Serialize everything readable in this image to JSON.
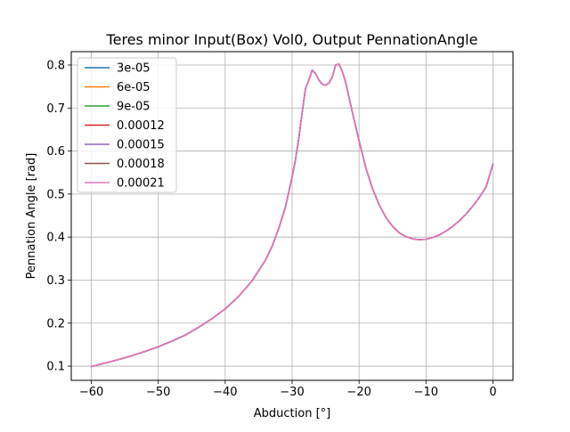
{
  "chart_data": {
    "type": "line",
    "title": "Teres minor Input(Box) Vol0, Output PennationAngle",
    "xlabel": "Abduction [°]",
    "ylabel": "Pennation Angle [rad]",
    "xlim": [
      -63,
      3
    ],
    "ylim": [
      0.067,
      0.831
    ],
    "xticks": [
      -60,
      -50,
      -40,
      -30,
      -20,
      -10,
      0
    ],
    "xtick_labels": [
      "−60",
      "−50",
      "−40",
      "−30",
      "−20",
      "−10",
      "0"
    ],
    "yticks": [
      0.1,
      0.2,
      0.3,
      0.4,
      0.5,
      0.6,
      0.7,
      0.8
    ],
    "ytick_labels": [
      "0.1",
      "0.2",
      "0.3",
      "0.4",
      "0.5",
      "0.6",
      "0.7",
      "0.8"
    ],
    "grid": true,
    "legend_position": "top-left",
    "x": [
      -60,
      -58,
      -56,
      -54,
      -52,
      -50,
      -48,
      -46,
      -44,
      -42,
      -40,
      -38,
      -36,
      -34,
      -33,
      -32,
      -31,
      -30,
      -29.5,
      -29,
      -28.5,
      -28,
      -27.5,
      -27,
      -26.5,
      -26,
      -25.5,
      -25,
      -24.5,
      -24,
      -23.5,
      -23,
      -22.5,
      -22,
      -21.5,
      -21,
      -20,
      -19,
      -18,
      -17,
      -16,
      -15,
      -14,
      -13,
      -12,
      -11,
      -10,
      -9,
      -8,
      -7,
      -6,
      -5,
      -4,
      -3,
      -2,
      -1,
      0
    ],
    "series": [
      {
        "name": "3e-05",
        "color": "#1f77b4",
        "values": [
          0.099,
          0.107,
          0.115,
          0.124,
          0.134,
          0.145,
          0.158,
          0.172,
          0.19,
          0.21,
          0.233,
          0.262,
          0.298,
          0.346,
          0.378,
          0.42,
          0.47,
          0.54,
          0.58,
          0.63,
          0.69,
          0.745,
          0.765,
          0.788,
          0.78,
          0.765,
          0.755,
          0.753,
          0.758,
          0.772,
          0.8,
          0.802,
          0.785,
          0.76,
          0.725,
          0.69,
          0.624,
          0.562,
          0.513,
          0.475,
          0.446,
          0.425,
          0.41,
          0.401,
          0.396,
          0.394,
          0.395,
          0.399,
          0.405,
          0.414,
          0.425,
          0.438,
          0.454,
          0.472,
          0.493,
          0.517,
          0.57
        ]
      },
      {
        "name": "6e-05",
        "color": "#ff7f0e",
        "values": [
          0.099,
          0.107,
          0.115,
          0.124,
          0.134,
          0.145,
          0.158,
          0.172,
          0.19,
          0.21,
          0.233,
          0.262,
          0.298,
          0.346,
          0.378,
          0.42,
          0.47,
          0.54,
          0.58,
          0.63,
          0.69,
          0.745,
          0.765,
          0.788,
          0.78,
          0.765,
          0.755,
          0.753,
          0.758,
          0.772,
          0.8,
          0.802,
          0.785,
          0.76,
          0.725,
          0.69,
          0.624,
          0.562,
          0.513,
          0.475,
          0.446,
          0.425,
          0.41,
          0.401,
          0.396,
          0.394,
          0.395,
          0.399,
          0.405,
          0.414,
          0.425,
          0.438,
          0.454,
          0.472,
          0.493,
          0.517,
          0.57
        ]
      },
      {
        "name": "9e-05",
        "color": "#2ca02c",
        "values": [
          0.099,
          0.107,
          0.115,
          0.124,
          0.134,
          0.145,
          0.158,
          0.172,
          0.19,
          0.21,
          0.233,
          0.262,
          0.298,
          0.346,
          0.378,
          0.42,
          0.47,
          0.54,
          0.58,
          0.63,
          0.69,
          0.745,
          0.765,
          0.788,
          0.78,
          0.765,
          0.755,
          0.753,
          0.758,
          0.772,
          0.8,
          0.802,
          0.785,
          0.76,
          0.725,
          0.69,
          0.624,
          0.562,
          0.513,
          0.475,
          0.446,
          0.425,
          0.41,
          0.401,
          0.396,
          0.394,
          0.395,
          0.399,
          0.405,
          0.414,
          0.425,
          0.438,
          0.454,
          0.472,
          0.493,
          0.517,
          0.57
        ]
      },
      {
        "name": "0.00012",
        "color": "#d62728",
        "values": [
          0.099,
          0.107,
          0.115,
          0.124,
          0.134,
          0.145,
          0.158,
          0.172,
          0.19,
          0.21,
          0.233,
          0.262,
          0.298,
          0.346,
          0.378,
          0.42,
          0.47,
          0.54,
          0.58,
          0.63,
          0.69,
          0.745,
          0.765,
          0.788,
          0.78,
          0.765,
          0.755,
          0.753,
          0.758,
          0.772,
          0.8,
          0.802,
          0.785,
          0.76,
          0.725,
          0.69,
          0.624,
          0.562,
          0.513,
          0.475,
          0.446,
          0.425,
          0.41,
          0.401,
          0.396,
          0.394,
          0.395,
          0.399,
          0.405,
          0.414,
          0.425,
          0.438,
          0.454,
          0.472,
          0.493,
          0.517,
          0.57
        ]
      },
      {
        "name": "0.00015",
        "color": "#9467bd",
        "values": [
          0.099,
          0.107,
          0.115,
          0.124,
          0.134,
          0.145,
          0.158,
          0.172,
          0.19,
          0.21,
          0.233,
          0.262,
          0.298,
          0.346,
          0.378,
          0.42,
          0.47,
          0.54,
          0.58,
          0.63,
          0.69,
          0.745,
          0.765,
          0.788,
          0.78,
          0.765,
          0.755,
          0.753,
          0.758,
          0.772,
          0.8,
          0.802,
          0.785,
          0.76,
          0.725,
          0.69,
          0.624,
          0.562,
          0.513,
          0.475,
          0.446,
          0.425,
          0.41,
          0.401,
          0.396,
          0.394,
          0.395,
          0.399,
          0.405,
          0.414,
          0.425,
          0.438,
          0.454,
          0.472,
          0.493,
          0.517,
          0.57
        ]
      },
      {
        "name": "0.00018",
        "color": "#8c564b",
        "values": [
          0.099,
          0.107,
          0.115,
          0.124,
          0.134,
          0.145,
          0.158,
          0.172,
          0.19,
          0.21,
          0.233,
          0.262,
          0.298,
          0.346,
          0.378,
          0.42,
          0.47,
          0.54,
          0.58,
          0.63,
          0.69,
          0.745,
          0.765,
          0.788,
          0.78,
          0.765,
          0.755,
          0.753,
          0.758,
          0.772,
          0.8,
          0.802,
          0.785,
          0.76,
          0.725,
          0.69,
          0.624,
          0.562,
          0.513,
          0.475,
          0.446,
          0.425,
          0.41,
          0.401,
          0.396,
          0.394,
          0.395,
          0.399,
          0.405,
          0.414,
          0.425,
          0.438,
          0.454,
          0.472,
          0.493,
          0.517,
          0.57
        ]
      },
      {
        "name": "0.00021",
        "color": "#e377c2",
        "values": [
          0.099,
          0.107,
          0.115,
          0.124,
          0.134,
          0.145,
          0.158,
          0.172,
          0.19,
          0.21,
          0.233,
          0.262,
          0.298,
          0.346,
          0.378,
          0.42,
          0.47,
          0.54,
          0.58,
          0.63,
          0.69,
          0.745,
          0.765,
          0.788,
          0.78,
          0.765,
          0.755,
          0.753,
          0.758,
          0.772,
          0.8,
          0.802,
          0.785,
          0.76,
          0.725,
          0.69,
          0.624,
          0.562,
          0.513,
          0.475,
          0.446,
          0.425,
          0.41,
          0.401,
          0.396,
          0.394,
          0.395,
          0.399,
          0.405,
          0.414,
          0.425,
          0.438,
          0.454,
          0.472,
          0.493,
          0.517,
          0.57
        ]
      }
    ]
  }
}
